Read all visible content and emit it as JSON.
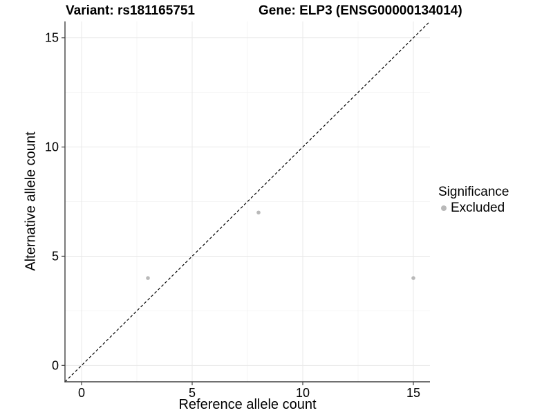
{
  "chart_data": {
    "type": "scatter",
    "titles": {
      "variant": "Variant: rs181165751",
      "gene": "Gene: ELP3 (ENSG00000134014)"
    },
    "xlabel": "Reference allele count",
    "ylabel": "Alternative allele count",
    "xlim": [
      -0.75,
      15.75
    ],
    "ylim": [
      -0.75,
      15.75
    ],
    "x_ticks": [
      0,
      5,
      10,
      15
    ],
    "y_ticks": [
      0,
      5,
      10,
      15
    ],
    "x_minor_ticks": [
      2.5,
      7.5,
      12.5
    ],
    "y_minor_ticks": [
      2.5,
      7.5,
      12.5
    ],
    "grid": true,
    "series": [
      {
        "name": "Excluded",
        "color": "#b9b9b9",
        "points": [
          {
            "x": 3,
            "y": 4
          },
          {
            "x": 8,
            "y": 7
          },
          {
            "x": 15,
            "y": 4
          }
        ]
      }
    ],
    "identity_line": {
      "slope": 1,
      "intercept": 0,
      "style": "dashed",
      "color": "#000000"
    },
    "legend": {
      "position": "right",
      "title": "Significance",
      "items": [
        {
          "label": "Excluded",
          "color": "#b9b9b9"
        }
      ]
    },
    "colors": {
      "background": "#ffffff",
      "grid_major": "#e8e8e8",
      "grid_minor": "#f4f4f4",
      "axis_line": "#404040",
      "tick_text": "#000000"
    }
  }
}
